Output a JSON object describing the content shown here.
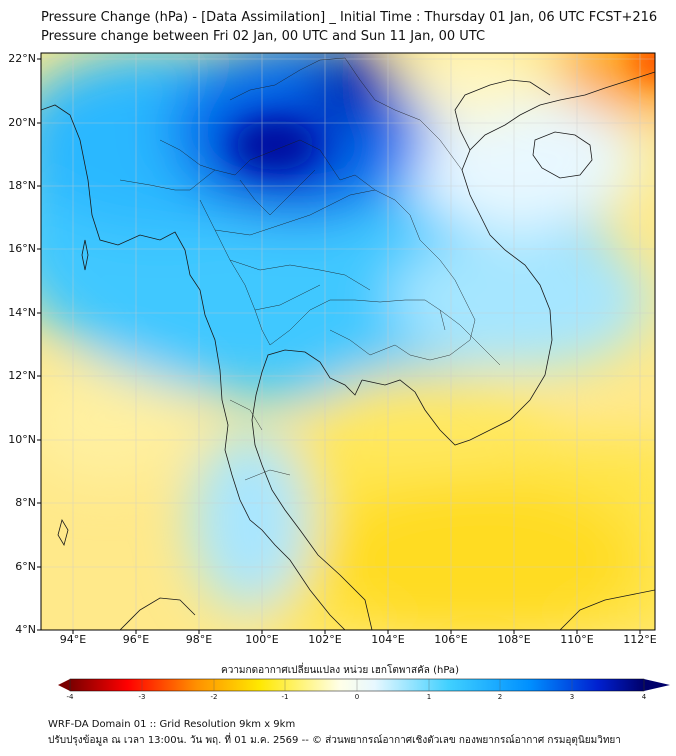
{
  "header": {
    "title_line1": "Pressure Change (hPa) - [Data Assimilation] _ Initial Time : Thursday 01 Jan, 06 UTC FCST+216",
    "title_line2": "Pressure change between Fri 02 Jan, 00 UTC and Sun 11 Jan, 00 UTC"
  },
  "map": {
    "lat_labels": [
      "22°N",
      "20°N",
      "18°N",
      "16°N",
      "14°N",
      "12°N",
      "10°N",
      "8°N",
      "6°N",
      "4°N"
    ],
    "lon_labels": [
      "94°E",
      "96°E",
      "98°E",
      "100°E",
      "102°E",
      "104°E",
      "106°E",
      "108°E",
      "110°E",
      "112°E"
    ]
  },
  "colorbar": {
    "title": "ความกดอากาศเปลี่ยนแปลง หน่วย เฮกโตพาสคัล (hPa)",
    "ticks": [
      "-4",
      "-3",
      "-2",
      "-1",
      "0",
      "1",
      "2",
      "3",
      "4"
    ],
    "colors": {
      "strong_negative": "#7a0000",
      "negative": "#ff2a00",
      "mild_negative": "#ffe400",
      "neutral": "#ffffff",
      "mild_positive": "#7fdcff",
      "positive": "#00aaff",
      "strong_positive": "#00006a"
    }
  },
  "footer": {
    "line1": "WRF-DA Domain 01 :: Grid Resolution 9km x 9km",
    "line2": "ปรับปรุงข้อมูล ณ เวลา 13:00น. วัน พฤ. ที่ 01 ม.ค. 2569 -- © ส่วนพยากรณ์อากาศเชิงตัวเลข กองพยากรณ์อากาศ กรมอุตุนิยมวิทยา"
  }
}
